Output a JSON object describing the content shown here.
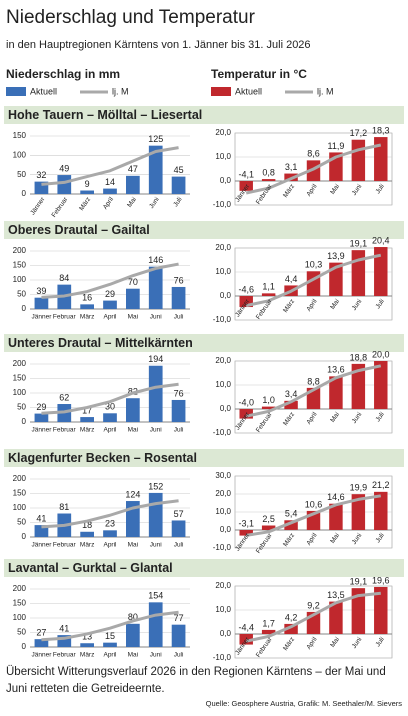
{
  "title": "Niederschlag und Temperatur",
  "subtitle": "in den Hauptregionen Kärntens von 1. Jänner bis 31. Juli 2026",
  "regions": [
    "Hohe Tauern – Mölltal – Liesertal",
    "Oberes Drautal – Gailtal",
    "Unteres Drautal  – Mittelkärnten",
    "Klagenfurter Becken – Rosental",
    "Lavantal – Gurktal – Glantal"
  ],
  "footer": "Übersicht Witterungsverlauf 2026 in den Regionen Kärntens – der Mai und Juni retteten die Getreideernte.",
  "source": "Quelle: Geosphere Austria, Grafik: M. Seethaler/M. Sievers",
  "chart_data": [
    {
      "type": "bar",
      "title": "Niederschlag in mm",
      "categories": [
        "Jänner",
        "Februar",
        "März",
        "April",
        "Mai",
        "Juni",
        "Juli"
      ],
      "series": [
        {
          "name": "Aktuell",
          "type": "bar",
          "color": "#3a6fb7",
          "values": [
            32,
            49,
            9,
            14,
            47,
            125,
            45
          ]
        },
        {
          "name": "lj. M",
          "type": "line",
          "color": "#a9a9a9",
          "values": [
            25,
            30,
            45,
            60,
            85,
            110,
            120
          ]
        }
      ],
      "ylim": [
        0,
        150
      ],
      "yticks": [
        0,
        50,
        100,
        150
      ],
      "grid": true
    },
    {
      "type": "bar",
      "title": "Temperatur in °C",
      "categories": [
        "Jänner",
        "Februar",
        "März",
        "April",
        "Mai",
        "Juni",
        "Juli"
      ],
      "series": [
        {
          "name": "Aktuell",
          "type": "bar",
          "color": "#c0282d",
          "values": [
            -4.1,
            0.8,
            3.1,
            8.6,
            11.9,
            17.2,
            18.3
          ],
          "value_labels": [
            "-4,1",
            "0,8",
            "3,1",
            "8,6",
            "11,9",
            "17,2",
            "18,3"
          ]
        },
        {
          "name": "lj. M",
          "type": "line",
          "color": "#a9a9a9",
          "values": [
            -5,
            -3,
            1,
            5,
            10,
            13,
            15
          ]
        }
      ],
      "ylim": [
        -10,
        20
      ],
      "yticks": [
        {
          "value": -10,
          "label": "-10,0"
        },
        {
          "value": 0,
          "label": "0,0"
        },
        {
          "value": 10,
          "label": "10,0"
        },
        {
          "value": 20,
          "label": "20,0"
        }
      ],
      "grid": true
    },
    {
      "type": "bar",
      "categories": [
        "Jänner",
        "Februar",
        "März",
        "April",
        "Mai",
        "Juni",
        "Juli"
      ],
      "series": [
        {
          "type": "bar",
          "color": "#3a6fb7",
          "values": [
            39,
            84,
            16,
            29,
            70,
            146,
            76
          ]
        },
        {
          "type": "line",
          "color": "#a9a9a9",
          "values": [
            40,
            45,
            60,
            85,
            115,
            140,
            155
          ]
        }
      ],
      "ylim": [
        0,
        200
      ],
      "yticks": [
        0,
        50,
        100,
        150,
        200
      ],
      "grid": true
    },
    {
      "type": "bar",
      "categories": [
        "Jänner",
        "Februar",
        "März",
        "April",
        "Mai",
        "Juni",
        "Juli"
      ],
      "series": [
        {
          "type": "bar",
          "color": "#c0282d",
          "values": [
            -4.6,
            1.1,
            4.4,
            10.3,
            13.9,
            19.1,
            20.4
          ],
          "value_labels": [
            "-4,6",
            "1,1",
            "4,4",
            "10,3",
            "13,9",
            "19,1",
            "20,4"
          ]
        },
        {
          "type": "line",
          "color": "#a9a9a9",
          "values": [
            -4,
            -2,
            2,
            7,
            12,
            15,
            17
          ]
        }
      ],
      "ylim": [
        -10,
        20
      ],
      "yticks": [
        {
          "value": -10,
          "label": "-10,0"
        },
        {
          "value": 0,
          "label": "0,0"
        },
        {
          "value": 10,
          "label": "10,0"
        },
        {
          "value": 20,
          "label": "20,0"
        }
      ],
      "grid": true
    },
    {
      "type": "bar",
      "categories": [
        "Jänner",
        "Februar",
        "März",
        "April",
        "Mai",
        "Juni",
        "Juli"
      ],
      "series": [
        {
          "type": "bar",
          "color": "#3a6fb7",
          "values": [
            29,
            62,
            17,
            30,
            82,
            194,
            76
          ]
        },
        {
          "type": "line",
          "color": "#a9a9a9",
          "values": [
            30,
            35,
            50,
            70,
            100,
            120,
            130
          ]
        }
      ],
      "ylim": [
        0,
        200
      ],
      "yticks": [
        0,
        50,
        100,
        150,
        200
      ],
      "grid": true
    },
    {
      "type": "bar",
      "categories": [
        "Jänner",
        "Februar",
        "März",
        "April",
        "Mai",
        "Juni",
        "Juli"
      ],
      "series": [
        {
          "type": "bar",
          "color": "#c0282d",
          "values": [
            -4.0,
            1.0,
            3.4,
            8.8,
            13.6,
            18.8,
            20.0
          ],
          "value_labels": [
            "-4,0",
            "1,0",
            "3,4",
            "8,8",
            "13,6",
            "18,8",
            "20,0"
          ]
        },
        {
          "type": "line",
          "color": "#a9a9a9",
          "values": [
            -3,
            -1,
            3,
            8,
            13,
            16,
            18
          ]
        }
      ],
      "ylim": [
        -10,
        20
      ],
      "yticks": [
        {
          "value": -10,
          "label": "-10,0"
        },
        {
          "value": 0,
          "label": "0,0"
        },
        {
          "value": 10,
          "label": "10,0"
        },
        {
          "value": 20,
          "label": "20,0"
        }
      ],
      "grid": true
    },
    {
      "type": "bar",
      "categories": [
        "Jänner",
        "Februar",
        "März",
        "April",
        "Mai",
        "Juni",
        "Juli"
      ],
      "series": [
        {
          "type": "bar",
          "color": "#3a6fb7",
          "values": [
            41,
            81,
            18,
            23,
            124,
            152,
            57
          ]
        },
        {
          "type": "line",
          "color": "#a9a9a9",
          "values": [
            35,
            40,
            55,
            75,
            100,
            115,
            125
          ]
        }
      ],
      "ylim": [
        0,
        200
      ],
      "yticks": [
        0,
        50,
        100,
        150,
        200
      ],
      "grid": true
    },
    {
      "type": "bar",
      "categories": [
        "Jänner",
        "Februar",
        "März",
        "April",
        "Mai",
        "Juni",
        "Juli"
      ],
      "series": [
        {
          "type": "bar",
          "color": "#c0282d",
          "values": [
            -3.1,
            2.5,
            5.4,
            10.6,
            14.6,
            19.9,
            21.2
          ],
          "value_labels": [
            "-3,1",
            "2,5",
            "5,4",
            "10,6",
            "14,6",
            "19,9",
            "21,2"
          ]
        },
        {
          "type": "line",
          "color": "#a9a9a9",
          "values": [
            -3,
            -1,
            4,
            9,
            14,
            17,
            19
          ]
        }
      ],
      "ylim": [
        -10,
        30
      ],
      "yticks": [
        {
          "value": -10,
          "label": "-10,0"
        },
        {
          "value": 0,
          "label": "0,0"
        },
        {
          "value": 10,
          "label": "10,0"
        },
        {
          "value": 20,
          "label": "20,0"
        },
        {
          "value": 30,
          "label": "30,0"
        }
      ],
      "grid": true
    },
    {
      "type": "bar",
      "categories": [
        "Jänner",
        "Februar",
        "März",
        "April",
        "Mai",
        "Juni",
        "Juli"
      ],
      "series": [
        {
          "type": "bar",
          "color": "#3a6fb7",
          "values": [
            27,
            41,
            13,
            15,
            80,
            154,
            77
          ]
        },
        {
          "type": "line",
          "color": "#a9a9a9",
          "values": [
            25,
            30,
            45,
            65,
            90,
            110,
            120
          ]
        }
      ],
      "ylim": [
        0,
        200
      ],
      "yticks": [
        0,
        50,
        100,
        150,
        200
      ],
      "grid": true
    },
    {
      "type": "bar",
      "categories": [
        "Jänner",
        "Februar",
        "März",
        "April",
        "Mai",
        "Juni",
        "Juli"
      ],
      "series": [
        {
          "type": "bar",
          "color": "#c0282d",
          "values": [
            -4.4,
            1.7,
            4.2,
            9.2,
            13.5,
            19.1,
            19.6
          ],
          "value_labels": [
            "-4,4",
            "1,7",
            "4,2",
            "9,2",
            "13,5",
            "19,1",
            "19,6"
          ]
        },
        {
          "type": "line",
          "color": "#a9a9a9",
          "values": [
            -3,
            -1,
            3,
            8,
            13,
            16,
            17
          ]
        }
      ],
      "ylim": [
        -10,
        20
      ],
      "yticks": [
        {
          "value": -10,
          "label": "-10,0"
        },
        {
          "value": 0,
          "label": "0,0"
        },
        {
          "value": 10,
          "label": "10,0"
        },
        {
          "value": 20,
          "label": "20,0"
        }
      ],
      "grid": true
    }
  ]
}
